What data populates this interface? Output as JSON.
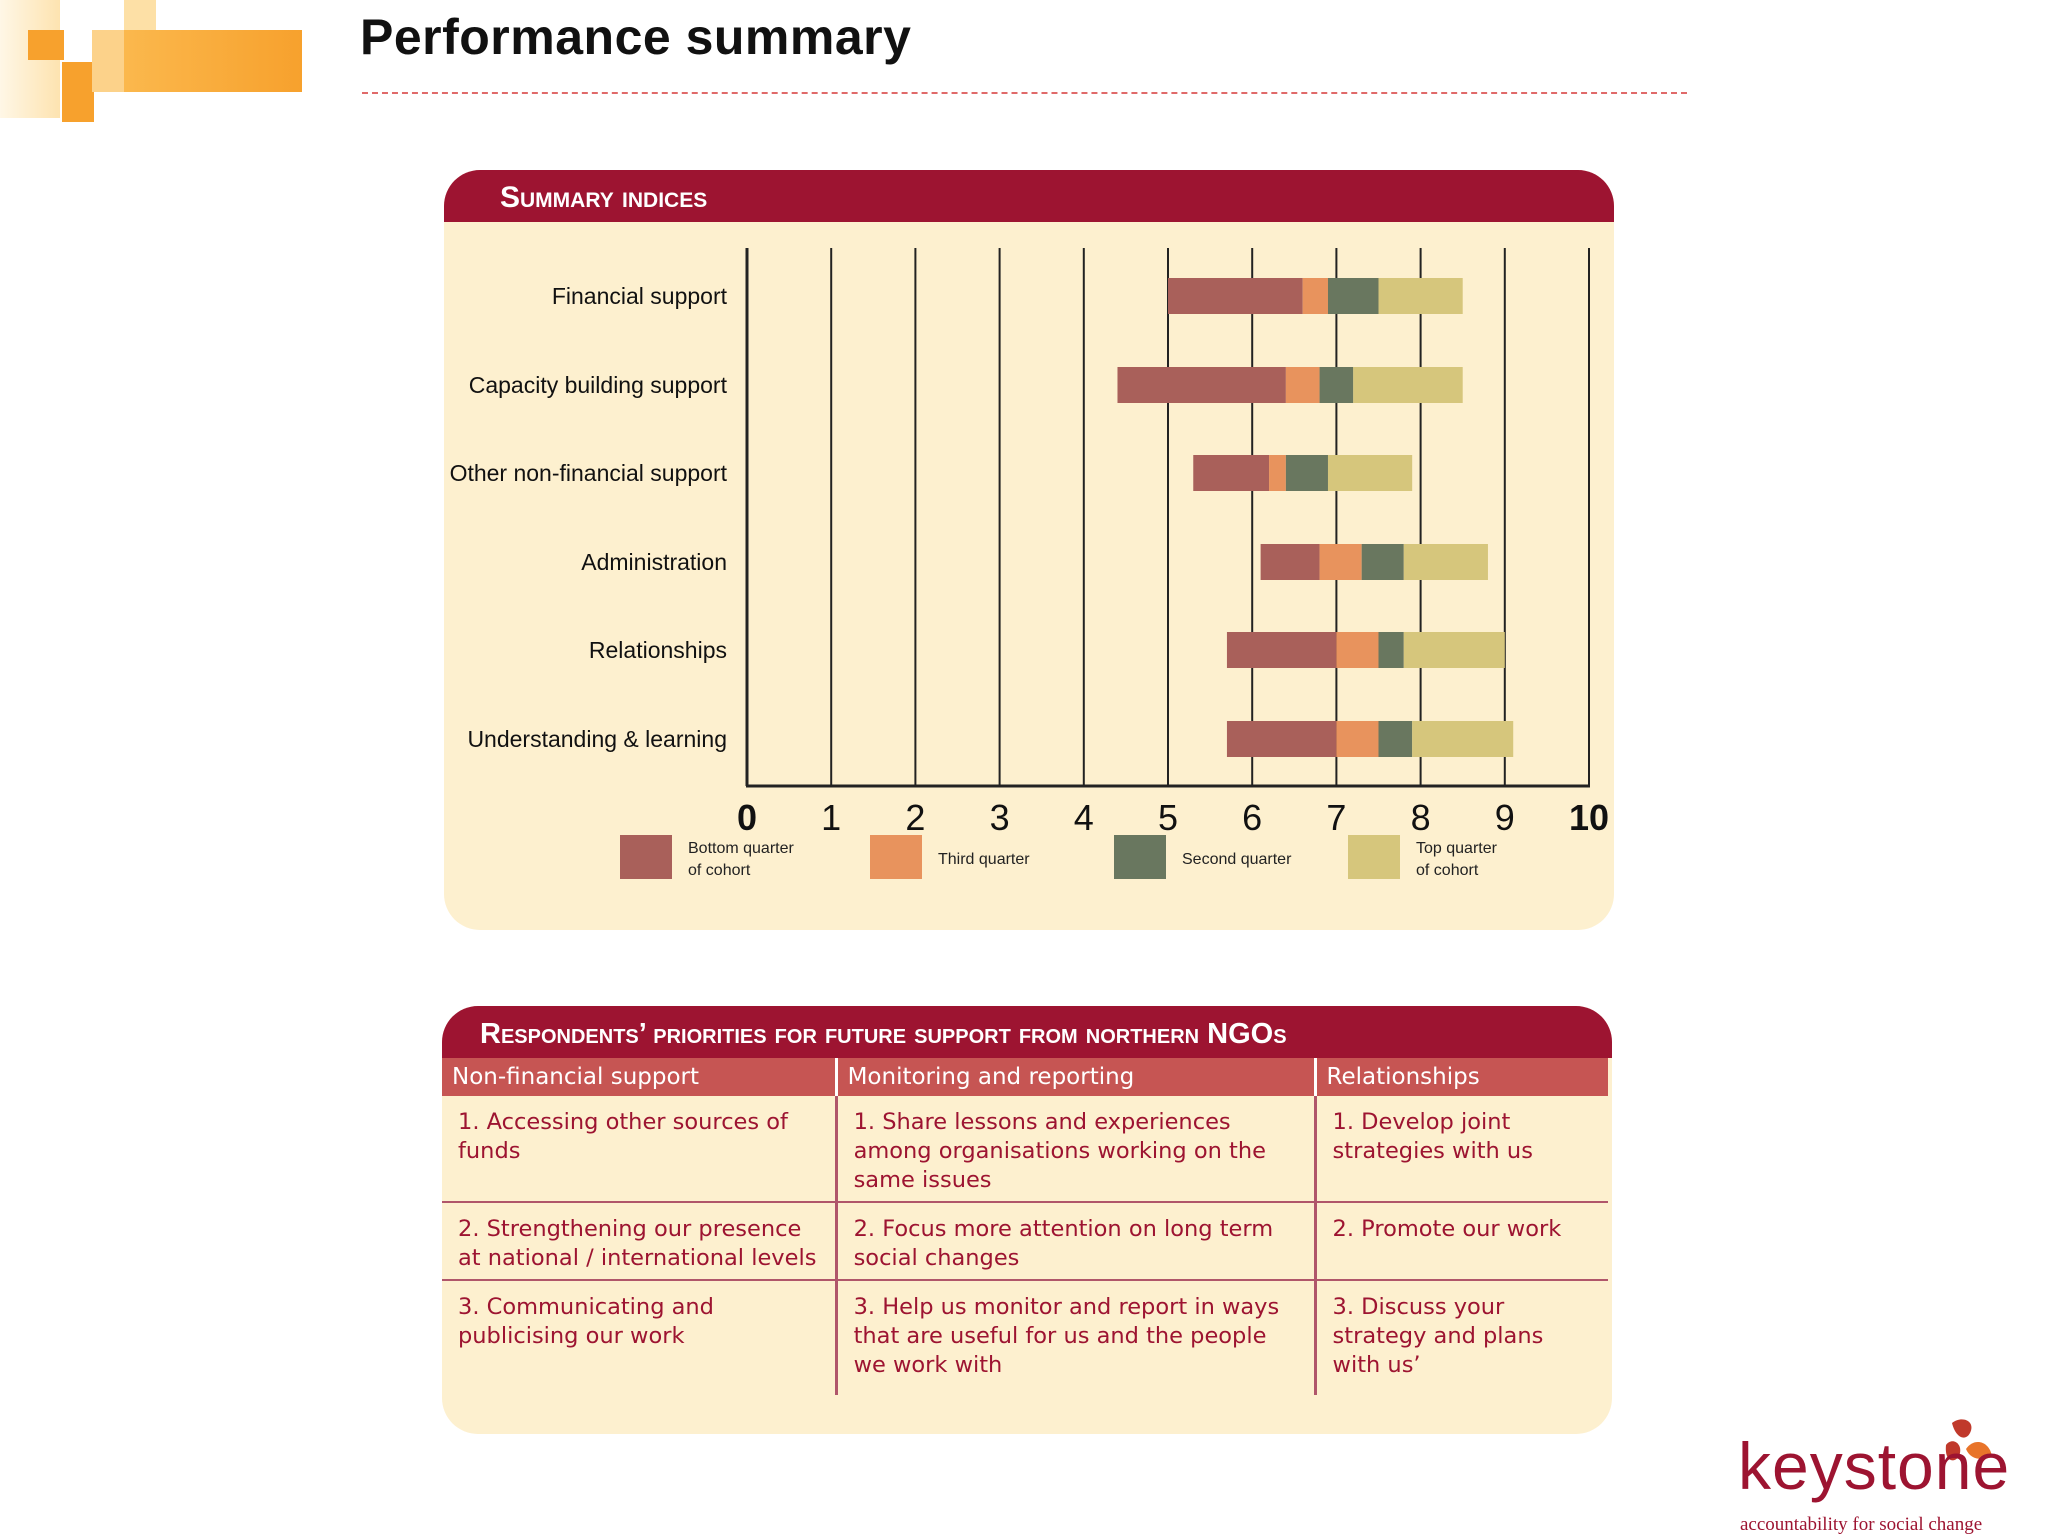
{
  "page": {
    "title": "Performance summary"
  },
  "colors": {
    "maroon": "#9d1431",
    "bottom": "#a9605a",
    "third": "#e8935d",
    "second": "#69775f",
    "top": "#d6c67c",
    "panel": "#fdf0cf",
    "orange": "#f7a12d"
  },
  "chart_panel": {
    "heading": "Summary indices"
  },
  "chart_data": {
    "type": "bar",
    "orientation": "horizontal-stacked-range",
    "title": "Summary indices",
    "xlim": [
      0,
      10
    ],
    "xticks": [
      "0",
      "1",
      "2",
      "3",
      "4",
      "5",
      "6",
      "7",
      "8",
      "9",
      "10"
    ],
    "categories": [
      "Financial support",
      "Capacity building support",
      "Other non-financial support",
      "Administration",
      "Relationships",
      "Understanding & learning"
    ],
    "series_start": [
      5.0,
      4.4,
      5.3,
      6.1,
      5.7,
      5.7
    ],
    "series": [
      {
        "name": "Bottom quarter of cohort",
        "color": "#a9605a",
        "values": [
          1.6,
          2.0,
          0.9,
          0.7,
          1.3,
          1.3
        ]
      },
      {
        "name": "Third quarter",
        "color": "#e8935d",
        "values": [
          0.3,
          0.4,
          0.2,
          0.5,
          0.5,
          0.5
        ]
      },
      {
        "name": "Second quarter",
        "color": "#69775f",
        "values": [
          0.6,
          0.4,
          0.5,
          0.5,
          0.3,
          0.4
        ]
      },
      {
        "name": "Top quarter of cohort",
        "color": "#d6c67c",
        "values": [
          1.0,
          1.3,
          1.0,
          1.0,
          1.2,
          1.2
        ]
      }
    ],
    "legend": [
      {
        "line1": "Bottom quarter",
        "line2": "of cohort",
        "color": "#a9605a"
      },
      {
        "line1": "Third quarter",
        "line2": "",
        "color": "#e8935d"
      },
      {
        "line1": "Second quarter",
        "line2": "",
        "color": "#69775f"
      },
      {
        "line1": "Top quarter",
        "line2": "of cohort",
        "color": "#d6c67c"
      }
    ],
    "legend_position": "bottom",
    "grid": true
  },
  "table_panel": {
    "heading": "Respondents’ priorities for future support from northern NGOs",
    "columns": [
      "Non-financial support",
      "Monitoring and reporting",
      "Relationships"
    ],
    "rows": [
      [
        "1. Accessing other sources of funds",
        "1. Share lessons and experiences among organisations working on the same issues",
        "1. Develop joint strategies with us"
      ],
      [
        "2. Strengthening our presence at national / international levels",
        "2. Focus more attention on long term social changes",
        "2. Promote our work"
      ],
      [
        "3. Communicating and publicising our work",
        "3. Help us monitor and report in ways that are useful for us and the people we work with",
        "3. Discuss your strategy and plans with us’"
      ]
    ]
  },
  "brand": {
    "name": "keystone",
    "tagline": "accountability for social change"
  }
}
